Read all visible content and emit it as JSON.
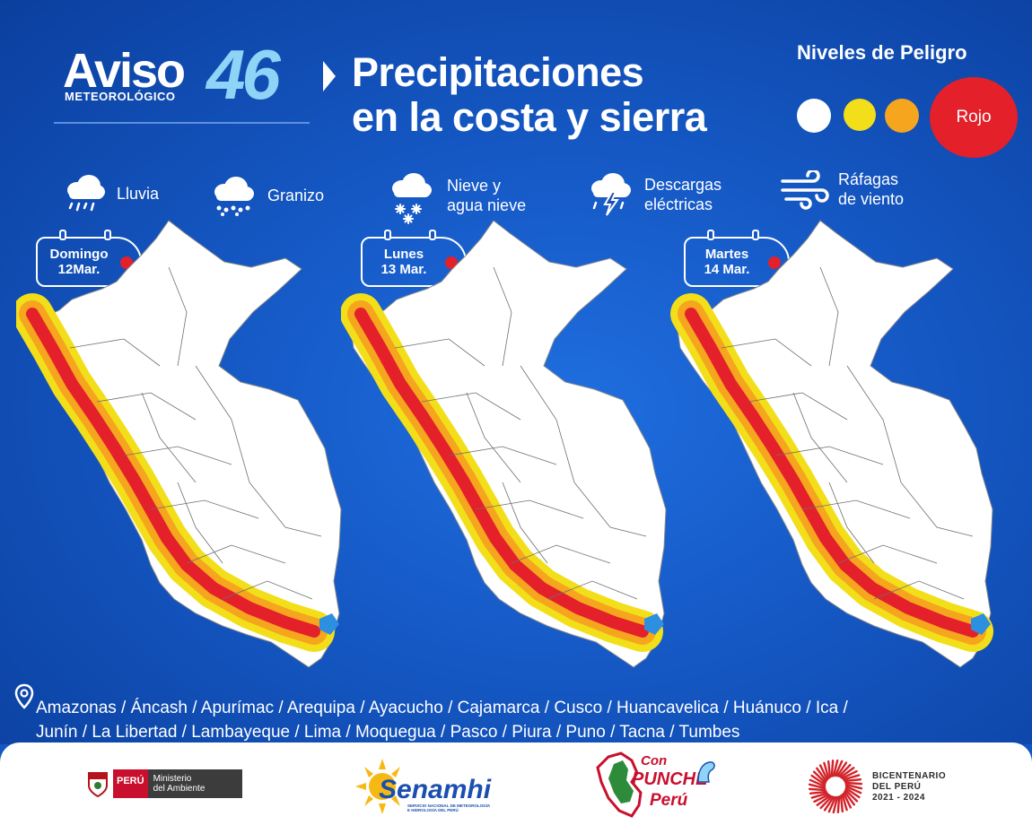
{
  "header": {
    "aviso": "Aviso",
    "meteorologico": "METEOROLÓGICO",
    "number": "46",
    "headline_line1": "Precipitaciones",
    "headline_line2": "en la costa y sierra"
  },
  "levels": {
    "title": "Niveles de Peligro",
    "active_label": "Rojo",
    "colors": [
      "#ffffff",
      "#f2df1a",
      "#f5a51e",
      "#e4202a"
    ]
  },
  "phenomena": [
    {
      "label": "Lluvia",
      "icon": "rain-cloud-icon"
    },
    {
      "label": "Granizo",
      "icon": "hail-cloud-icon"
    },
    {
      "label_line1": "Nieve y",
      "label_line2": "agua nieve",
      "icon": "snow-cloud-icon"
    },
    {
      "label_line1": "Descargas",
      "label_line2": "eléctricas",
      "icon": "storm-cloud-icon"
    },
    {
      "label_line1": "Ráfagas",
      "label_line2": "de viento",
      "icon": "wind-icon"
    }
  ],
  "days": [
    {
      "line1": "Domingo",
      "line2": "12Mar."
    },
    {
      "line1": "Lunes",
      "line2": "13 Mar."
    },
    {
      "line1": "Martes",
      "line2": "14 Mar."
    }
  ],
  "regions": {
    "line1": "Amazonas / Áncash / Apurímac / Arequipa / Ayacucho / Cajamarca / Cusco / Huancavelica / Huánuco / Ica /",
    "line2": "Junín / La Libertad / Lambayeque / Lima / Moquegua / Pasco / Piura / Puno / Tacna / Tumbes"
  },
  "footer": {
    "peru": "PERÚ",
    "ministerio_line1": "Ministerio",
    "ministerio_line2": "del Ambiente",
    "senamhi": "Senamhi",
    "senamhi_sub1": "SERVICIO NACIONAL DE METEOROLOGÍA",
    "senamhi_sub2": "E HIDROLOGÍA DEL PERÚ",
    "punche_con": "Con",
    "punche": "PUNCHE",
    "punche_peru": "Perú",
    "bicentenario": "BICENTENARIO",
    "del_peru": "DEL PERÚ",
    "years": "2021 - 2024"
  }
}
